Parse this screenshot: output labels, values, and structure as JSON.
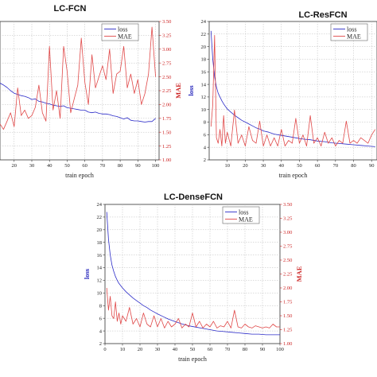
{
  "chart_data": [
    {
      "type": "line",
      "title": "LC-FCN",
      "xlabel": "train epoch",
      "ylabel_left": "",
      "ylabel_right": "MAE",
      "x_ticks": [
        20,
        30,
        40,
        50,
        60,
        70,
        80,
        90,
        100
      ],
      "y_left_ticks": [],
      "y_right_ticks": [
        1.0,
        1.25,
        1.5,
        1.75,
        2.0,
        2.25,
        2.5,
        2.75,
        3.0,
        3.25,
        3.5
      ],
      "xlim": [
        12,
        102
      ],
      "ylim_left": [
        2,
        24
      ],
      "ylim_right": [
        1.0,
        3.5
      ],
      "series": [
        {
          "name": "loss",
          "color": "#2b2bc8",
          "axis": "left",
          "x": [
            12,
            14,
            16,
            18,
            20,
            22,
            24,
            26,
            28,
            30,
            32,
            34,
            36,
            38,
            40,
            42,
            44,
            46,
            48,
            50,
            52,
            54,
            56,
            58,
            60,
            62,
            64,
            66,
            68,
            70,
            72,
            74,
            76,
            78,
            80,
            82,
            84,
            86,
            88,
            90,
            92,
            94,
            96,
            98,
            100
          ],
          "values": [
            14.2,
            13.9,
            13.5,
            13.0,
            12.6,
            12.4,
            12.2,
            12.1,
            11.9,
            11.6,
            11.7,
            11.3,
            11.2,
            11.0,
            10.9,
            10.7,
            10.6,
            10.5,
            10.6,
            10.3,
            10.2,
            10.1,
            10.0,
            9.9,
            9.9,
            9.6,
            9.5,
            9.6,
            9.4,
            9.3,
            9.3,
            9.2,
            9.0,
            8.9,
            8.7,
            8.5,
            8.7,
            8.3,
            8.2,
            8.2,
            8.1,
            8.0,
            8.1,
            8.1,
            8.6
          ]
        },
        {
          "name": "MAE",
          "color": "#e04848",
          "axis": "right",
          "x": [
            12,
            14,
            16,
            18,
            20,
            22,
            24,
            26,
            28,
            30,
            32,
            34,
            36,
            38,
            40,
            42,
            44,
            46,
            48,
            50,
            52,
            54,
            56,
            58,
            60,
            62,
            64,
            66,
            68,
            70,
            72,
            74,
            76,
            78,
            80,
            82,
            84,
            86,
            88,
            90,
            92,
            94,
            96,
            98,
            100
          ],
          "values": [
            1.65,
            1.55,
            1.7,
            1.85,
            1.6,
            2.3,
            1.8,
            1.9,
            1.75,
            1.8,
            1.95,
            2.35,
            1.85,
            1.7,
            3.05,
            1.9,
            2.25,
            1.75,
            3.05,
            2.6,
            1.85,
            2.1,
            2.35,
            3.2,
            2.4,
            2.0,
            2.9,
            2.3,
            2.5,
            2.7,
            2.45,
            3.0,
            2.2,
            2.55,
            2.6,
            3.05,
            2.3,
            2.55,
            2.2,
            2.45,
            2.0,
            2.2,
            2.55,
            3.4,
            2.5
          ]
        }
      ],
      "legend": [
        "loss",
        "MAE"
      ],
      "legend_position": "top-right"
    },
    {
      "type": "line",
      "title": "LC-ResFCN",
      "xlabel": "train epoch",
      "ylabel_left": "loss",
      "ylabel_right": "",
      "x_ticks": [
        10,
        20,
        30,
        40,
        50,
        60,
        70,
        80,
        90
      ],
      "y_left_ticks": [
        2,
        4,
        6,
        8,
        10,
        12,
        14,
        16,
        18,
        20,
        22,
        24
      ],
      "y_right_ticks": [],
      "xlim": [
        0,
        93
      ],
      "ylim_left": [
        2,
        24
      ],
      "ylim_right": [
        1.0,
        3.5
      ],
      "series": [
        {
          "name": "loss",
          "color": "#2b2bc8",
          "axis": "left",
          "x": [
            1,
            2,
            3,
            4,
            5,
            6,
            7,
            8,
            9,
            10,
            12,
            14,
            16,
            18,
            20,
            22,
            24,
            26,
            28,
            30,
            33,
            36,
            40,
            44,
            48,
            52,
            56,
            60,
            64,
            68,
            72,
            76,
            80,
            84,
            88,
            92
          ],
          "values": [
            22.5,
            18.0,
            15.2,
            13.6,
            12.6,
            12.0,
            11.4,
            10.9,
            10.5,
            10.1,
            9.6,
            9.1,
            8.7,
            8.3,
            8.0,
            7.7,
            7.4,
            7.1,
            6.9,
            6.6,
            6.4,
            6.1,
            5.9,
            5.7,
            5.5,
            5.3,
            5.2,
            5.0,
            4.9,
            4.7,
            4.6,
            4.5,
            4.4,
            4.3,
            4.2,
            4.1
          ]
        },
        {
          "name": "MAE",
          "color": "#e04848",
          "axis": "right",
          "x": [
            1,
            2,
            3,
            4,
            5,
            6,
            7,
            8,
            9,
            10,
            12,
            14,
            16,
            18,
            20,
            22,
            24,
            26,
            28,
            30,
            32,
            34,
            36,
            38,
            40,
            42,
            44,
            46,
            48,
            50,
            52,
            54,
            56,
            58,
            60,
            62,
            64,
            66,
            68,
            70,
            72,
            74,
            76,
            78,
            80,
            82,
            84,
            86,
            88,
            90,
            92
          ],
          "values": [
            1.6,
            2.0,
            3.25,
            1.4,
            1.3,
            1.55,
            1.25,
            1.8,
            1.3,
            1.5,
            1.25,
            1.9,
            1.3,
            1.45,
            1.25,
            1.6,
            1.35,
            1.3,
            1.7,
            1.25,
            1.45,
            1.25,
            1.4,
            1.25,
            1.55,
            1.25,
            1.35,
            1.3,
            1.75,
            1.3,
            1.45,
            1.25,
            1.8,
            1.3,
            1.4,
            1.25,
            1.5,
            1.3,
            1.4,
            1.25,
            1.35,
            1.3,
            1.7,
            1.3,
            1.35,
            1.3,
            1.4,
            1.35,
            1.3,
            1.45,
            1.55
          ]
        }
      ],
      "legend": [
        "loss",
        "MAE"
      ],
      "legend_position": "top-right"
    },
    {
      "type": "line",
      "title": "LC-DenseFCN",
      "xlabel": "train epoch",
      "ylabel_left": "loss",
      "ylabel_right": "MAE",
      "x_ticks": [
        0,
        10,
        20,
        30,
        40,
        50,
        60,
        70,
        80,
        90,
        100
      ],
      "y_left_ticks": [
        2,
        4,
        6,
        8,
        10,
        12,
        14,
        16,
        18,
        20,
        22,
        24
      ],
      "y_right_ticks": [
        1.0,
        1.25,
        1.5,
        1.75,
        2.0,
        2.25,
        2.5,
        2.75,
        3.0,
        3.25,
        3.5
      ],
      "xlim": [
        0,
        100
      ],
      "ylim_left": [
        2,
        24
      ],
      "ylim_right": [
        1.0,
        3.5
      ],
      "series": [
        {
          "name": "loss",
          "color": "#2b2bc8",
          "axis": "left",
          "x": [
            1,
            2,
            3,
            4,
            5,
            6,
            7,
            8,
            10,
            12,
            14,
            16,
            18,
            20,
            22,
            24,
            26,
            28,
            30,
            33,
            36,
            40,
            44,
            48,
            52,
            56,
            60,
            64,
            68,
            72,
            76,
            80,
            84,
            88,
            92,
            96,
            100
          ],
          "values": [
            22.8,
            18.5,
            16.0,
            14.4,
            13.4,
            12.6,
            12.0,
            11.5,
            10.8,
            10.2,
            9.7,
            9.2,
            8.8,
            8.4,
            8.0,
            7.7,
            7.3,
            7.0,
            6.7,
            6.3,
            5.9,
            5.5,
            5.1,
            4.8,
            4.6,
            4.4,
            4.2,
            4.0,
            3.9,
            3.8,
            3.7,
            3.6,
            3.5,
            3.5,
            3.4,
            3.4,
            3.4
          ]
        },
        {
          "name": "MAE",
          "color": "#e04848",
          "axis": "right",
          "x": [
            1,
            2,
            3,
            4,
            5,
            6,
            7,
            8,
            9,
            10,
            12,
            14,
            16,
            18,
            20,
            22,
            24,
            26,
            28,
            30,
            32,
            34,
            36,
            38,
            40,
            42,
            44,
            46,
            48,
            50,
            52,
            54,
            56,
            58,
            60,
            62,
            64,
            66,
            68,
            70,
            72,
            74,
            76,
            78,
            80,
            82,
            84,
            86,
            88,
            90,
            92,
            94,
            96,
            98,
            100
          ],
          "values": [
            2.0,
            1.6,
            1.85,
            1.5,
            1.45,
            1.75,
            1.4,
            1.55,
            1.35,
            1.5,
            1.4,
            1.65,
            1.35,
            1.45,
            1.3,
            1.55,
            1.35,
            1.3,
            1.5,
            1.3,
            1.45,
            1.28,
            1.4,
            1.3,
            1.35,
            1.45,
            1.28,
            1.35,
            1.3,
            1.55,
            1.3,
            1.4,
            1.28,
            1.35,
            1.3,
            1.4,
            1.28,
            1.32,
            1.3,
            1.4,
            1.28,
            1.6,
            1.3,
            1.28,
            1.35,
            1.3,
            1.28,
            1.32,
            1.3,
            1.28,
            1.3,
            1.28,
            1.35,
            1.3,
            1.3
          ]
        }
      ],
      "legend": [
        "loss",
        "MAE"
      ],
      "legend_position": "top-right"
    }
  ]
}
